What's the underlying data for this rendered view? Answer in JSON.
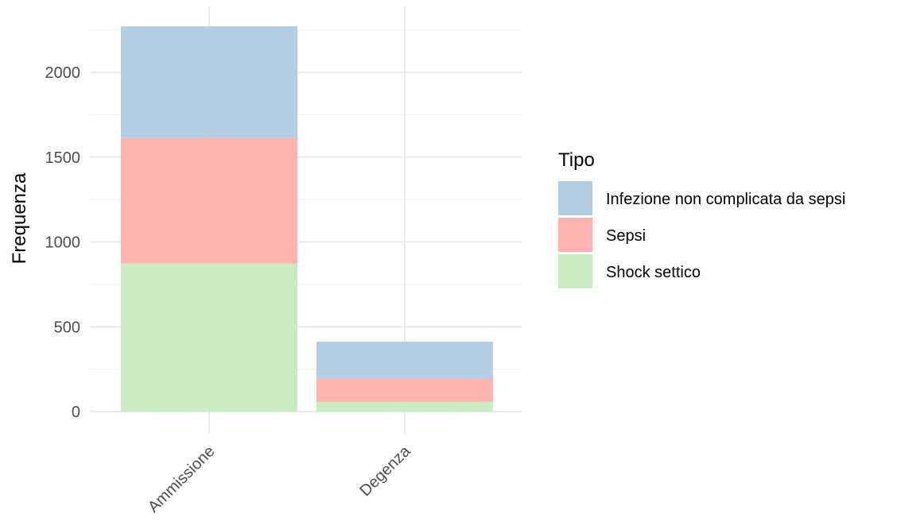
{
  "chart_data": {
    "type": "bar",
    "stacked": true,
    "title": "",
    "xlabel": "",
    "ylabel": "Frequenza",
    "categories": [
      "Ammissione",
      "Degenza"
    ],
    "series": [
      {
        "name": "Shock settico",
        "values": [
          873,
          58
        ],
        "color": "#CCEBC5"
      },
      {
        "name": "Sepsi",
        "values": [
          740,
          136
        ],
        "color": "#FBB4AE"
      },
      {
        "name": "Infezione non complicata da sepsi",
        "values": [
          658,
          218
        ],
        "color": "#B3CDE3"
      }
    ],
    "legend": {
      "title": "Tipo",
      "placement": "right",
      "order": [
        "Infezione non complicata da sepsi",
        "Sepsi",
        "Shock settico"
      ]
    },
    "y_ticks": [
      0,
      500,
      1000,
      1500,
      2000
    ],
    "ylim": [
      0,
      2271
    ],
    "grid": true
  }
}
